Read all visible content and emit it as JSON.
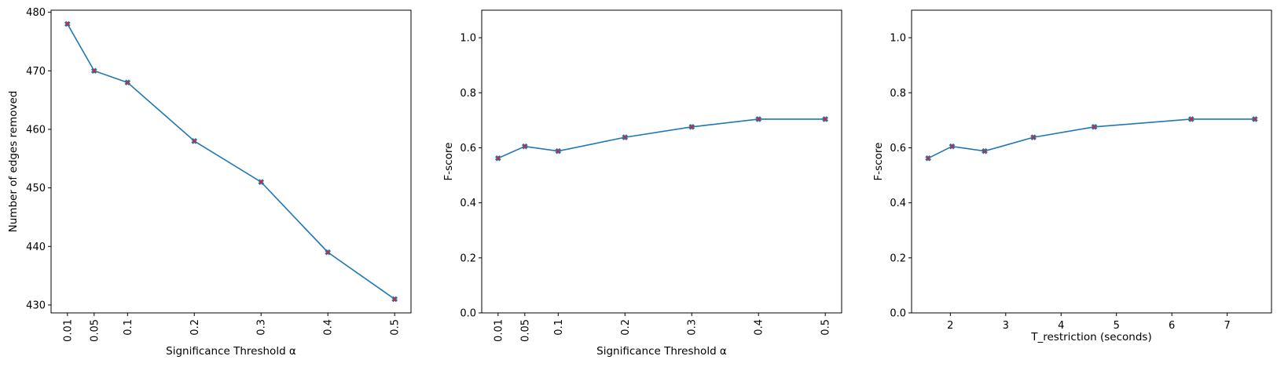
{
  "colors": {
    "line": "#1f77b4",
    "marker": "#d62728",
    "axis": "#000000",
    "background": "#ffffff"
  },
  "chart_data": [
    {
      "type": "line",
      "xlabel": "Significance Threshold α",
      "ylabel": "Number of edges removed",
      "x": [
        0.01,
        0.05,
        0.1,
        0.2,
        0.3,
        0.4,
        0.5
      ],
      "y": [
        478,
        470,
        468,
        458,
        451,
        439,
        431
      ],
      "xlim": [
        -0.0145,
        0.5245
      ],
      "ylim": [
        428.65,
        480.35
      ],
      "xticks": [
        0.01,
        0.05,
        0.1,
        0.2,
        0.3,
        0.4,
        0.5
      ],
      "xtick_labels": [
        "0.01",
        "0.05",
        "0.1",
        "0.2",
        "0.3",
        "0.4",
        "0.5"
      ],
      "xtick_rotation": "vertical",
      "yticks": [
        430,
        440,
        450,
        460,
        470,
        480
      ],
      "ytick_labels": [
        "430",
        "440",
        "450",
        "460",
        "470",
        "480"
      ],
      "marker": "X",
      "grid": false
    },
    {
      "type": "line",
      "xlabel": "Significance Threshold α",
      "ylabel": "F-score",
      "x": [
        0.01,
        0.05,
        0.1,
        0.2,
        0.3,
        0.4,
        0.5
      ],
      "y": [
        0.562,
        0.605,
        0.588,
        0.638,
        0.676,
        0.704,
        0.704
      ],
      "xlim": [
        -0.0145,
        0.5245
      ],
      "ylim": [
        0,
        1.1
      ],
      "xticks": [
        0.01,
        0.05,
        0.1,
        0.2,
        0.3,
        0.4,
        0.5
      ],
      "xtick_labels": [
        "0.01",
        "0.05",
        "0.1",
        "0.2",
        "0.3",
        "0.4",
        "0.5"
      ],
      "xtick_rotation": "vertical",
      "yticks": [
        0,
        0.2,
        0.4,
        0.6,
        0.8,
        1.0
      ],
      "ytick_labels": [
        "0.0",
        "0.2",
        "0.4",
        "0.6",
        "0.8",
        "1.0"
      ],
      "marker": "X",
      "grid": false
    },
    {
      "type": "line",
      "xlabel": "T_restriction (seconds)",
      "ylabel": "F-score",
      "x": [
        1.6,
        2.03,
        2.62,
        3.5,
        4.6,
        6.35,
        7.5
      ],
      "y": [
        0.562,
        0.605,
        0.588,
        0.638,
        0.676,
        0.704,
        0.704
      ],
      "xlim": [
        1.3,
        7.8
      ],
      "ylim": [
        0,
        1.1
      ],
      "xticks": [
        2,
        3,
        4,
        5,
        6,
        7
      ],
      "xtick_labels": [
        "2",
        "3",
        "4",
        "5",
        "6",
        "7"
      ],
      "xtick_rotation": "horizontal",
      "yticks": [
        0,
        0.2,
        0.4,
        0.6,
        0.8,
        1.0
      ],
      "ytick_labels": [
        "0.0",
        "0.2",
        "0.4",
        "0.6",
        "0.8",
        "1.0"
      ],
      "marker": "X",
      "grid": false
    }
  ]
}
